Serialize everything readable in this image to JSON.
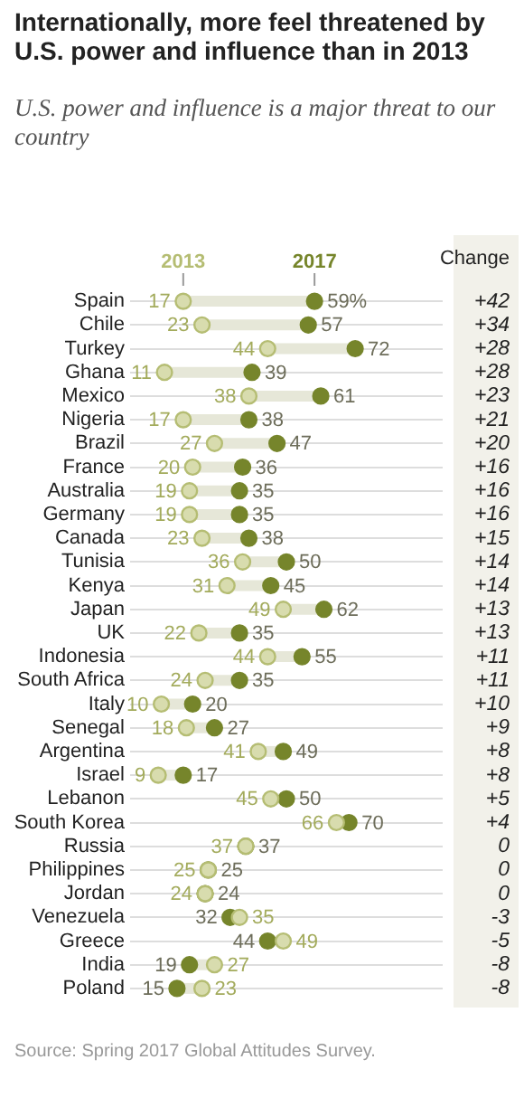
{
  "chart_data": {
    "type": "scatter",
    "orientation": "horizontal",
    "title": "Internationally, more feel threatened by U.S. power and influence than in 2013",
    "subtitle": "U.S. power and influence is a major threat to our country",
    "categories": [
      "Spain",
      "Chile",
      "Turkey",
      "Ghana",
      "Mexico",
      "Nigeria",
      "Brazil",
      "France",
      "Australia",
      "Germany",
      "Canada",
      "Tunisia",
      "Kenya",
      "Japan",
      "UK",
      "Indonesia",
      "South Africa",
      "Italy",
      "Senegal",
      "Argentina",
      "Israel",
      "Lebanon",
      "South Korea",
      "Russia",
      "Philippines",
      "Jordan",
      "Venezuela",
      "Greece",
      "India",
      "Poland"
    ],
    "series": [
      {
        "name": "2013",
        "color": "#b5bd73",
        "values": [
          17,
          23,
          44,
          11,
          38,
          17,
          27,
          20,
          19,
          19,
          23,
          36,
          31,
          49,
          22,
          44,
          24,
          10,
          18,
          41,
          9,
          45,
          66,
          37,
          25,
          24,
          35,
          49,
          27,
          23
        ],
        "value_labels": [
          "17",
          "23",
          "44",
          "11",
          "38",
          "17",
          "27",
          "20",
          "19",
          "19",
          "23",
          "36",
          "31",
          "49",
          "22",
          "44",
          "24",
          "10",
          "18",
          "41",
          "9",
          "45",
          "66",
          "37",
          "25",
          "24",
          "35",
          "49",
          "27",
          "23"
        ]
      },
      {
        "name": "2017",
        "color": "#76852b",
        "values": [
          59,
          57,
          72,
          39,
          61,
          38,
          47,
          36,
          35,
          35,
          38,
          50,
          45,
          62,
          35,
          55,
          35,
          20,
          27,
          49,
          17,
          50,
          70,
          37,
          25,
          24,
          32,
          44,
          19,
          15
        ],
        "value_labels": [
          "59%",
          "57",
          "72",
          "39",
          "61",
          "38",
          "47",
          "36",
          "35",
          "35",
          "38",
          "50",
          "45",
          "62",
          "35",
          "55",
          "35",
          "20",
          "27",
          "49",
          "17",
          "50",
          "70",
          "37",
          "25",
          "24",
          "32",
          "44",
          "19",
          "15"
        ]
      }
    ],
    "xlim": [
      0,
      100
    ],
    "grid": "y",
    "legend": "top",
    "tick_labels": "y",
    "annotations": [
      "Change",
      "+42",
      "+34",
      "+28",
      "+28",
      "+23",
      "+21",
      "+20",
      "+16",
      "+16",
      "+16",
      "+15",
      "+14",
      "+14",
      "+13",
      "+13",
      "+11",
      "+11",
      "+10",
      "+9",
      "+8",
      "+8",
      "+5",
      "+4",
      "0",
      "0",
      "0",
      "-3",
      "-5",
      "-8",
      "-8",
      "Source: Spring 2017 Global Attitudes Survey."
    ]
  }
}
